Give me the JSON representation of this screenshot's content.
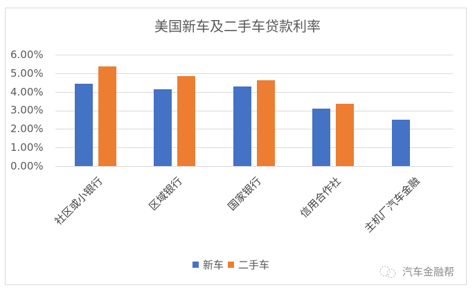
{
  "chart_data": {
    "type": "bar",
    "title": "美国新车及二手车贷款利率",
    "categories": [
      "社区或小银行",
      "区域银行",
      "国家银行",
      "信用合作社",
      "主机厂汽车金融"
    ],
    "series": [
      {
        "name": "新车",
        "color": "#4472C4",
        "values": [
          4.45,
          4.15,
          4.3,
          3.1,
          2.48
        ]
      },
      {
        "name": "二手车",
        "color": "#ED7D31",
        "values": [
          5.38,
          4.86,
          4.63,
          3.36,
          null
        ]
      }
    ],
    "xlabel": "",
    "ylabel": "",
    "ylim": [
      0,
      6
    ],
    "yticks": [
      "0.00%",
      "1.00%",
      "2.00%",
      "3.00%",
      "4.00%",
      "5.00%",
      "6.00%"
    ],
    "grid": true,
    "legend_position": "bottom"
  },
  "labels": {
    "title": "美国新车及二手车贷款利率",
    "yticks": [
      "6.00%",
      "5.00%",
      "4.00%",
      "3.00%",
      "2.00%",
      "1.00%",
      "0.00%"
    ],
    "categories": [
      "社区或小银行",
      "区域银行",
      "国家银行",
      "信用合作社",
      "主机厂汽车金融"
    ],
    "legend": [
      "新车",
      "二手车"
    ],
    "watermark": "汽车金融帮"
  }
}
